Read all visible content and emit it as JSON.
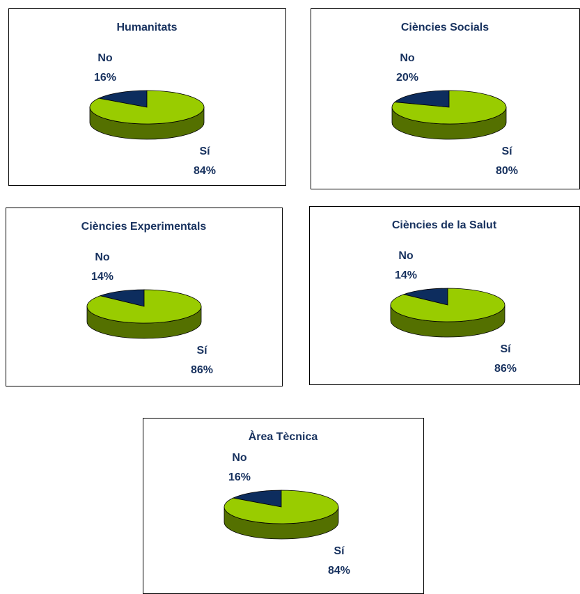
{
  "chart_data": [
    {
      "type": "pie",
      "title": "Humanitats",
      "categories": [
        "No",
        "Sí"
      ],
      "values": [
        16,
        84
      ],
      "value_labels": [
        "16%",
        "84%"
      ],
      "colors": [
        "#0d2d5e",
        "#99cc00"
      ]
    },
    {
      "type": "pie",
      "title": "Ciències Socials",
      "categories": [
        "No",
        "Sí"
      ],
      "values": [
        20,
        80
      ],
      "value_labels": [
        "20%",
        "80%"
      ],
      "colors": [
        "#0d2d5e",
        "#99cc00"
      ]
    },
    {
      "type": "pie",
      "title": "Ciències Experimentals",
      "categories": [
        "No",
        "Sí"
      ],
      "values": [
        14,
        86
      ],
      "value_labels": [
        "14%",
        "86%"
      ],
      "colors": [
        "#0d2d5e",
        "#99cc00"
      ]
    },
    {
      "type": "pie",
      "title": "Ciències de la Salut",
      "categories": [
        "No",
        "Sí"
      ],
      "values": [
        14,
        86
      ],
      "value_labels": [
        "14%",
        "86%"
      ],
      "colors": [
        "#0d2d5e",
        "#99cc00"
      ]
    },
    {
      "type": "pie",
      "title": "Àrea Tècnica",
      "categories": [
        "No",
        "Sí"
      ],
      "values": [
        16,
        84
      ],
      "value_labels": [
        "16%",
        "84%"
      ],
      "colors": [
        "#0d2d5e",
        "#99cc00"
      ]
    }
  ]
}
